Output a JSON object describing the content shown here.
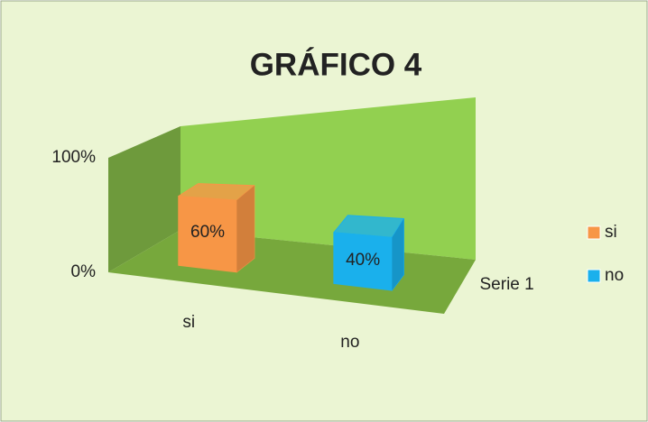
{
  "chart_data": {
    "type": "bar3d",
    "title": "GRÁFICO 4",
    "categories": [
      "si",
      "no"
    ],
    "values": [
      60,
      40
    ],
    "value_labels": [
      "60%",
      "40%"
    ],
    "colors": [
      "#f79646",
      "#1ab0ec"
    ],
    "depth_label": "Serie 1",
    "ylim": [
      0,
      100
    ],
    "yticks": [
      {
        "value": 0,
        "label": "0%"
      },
      {
        "value": 100,
        "label": "100%"
      }
    ],
    "legend": "right"
  }
}
